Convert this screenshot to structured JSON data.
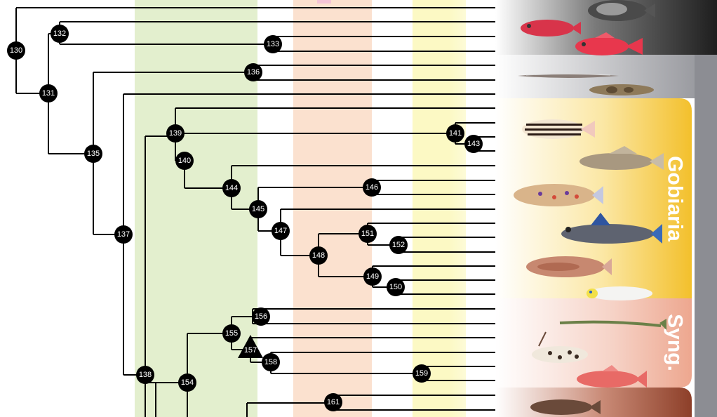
{
  "tree": {
    "nodes": [
      {
        "id": "130",
        "label": "130"
      },
      {
        "id": "131",
        "label": "131"
      },
      {
        "id": "132",
        "label": "132"
      },
      {
        "id": "133",
        "label": "133"
      },
      {
        "id": "135",
        "label": "135"
      },
      {
        "id": "136",
        "label": "136"
      },
      {
        "id": "137",
        "label": "137"
      },
      {
        "id": "138",
        "label": "138"
      },
      {
        "id": "139",
        "label": "139"
      },
      {
        "id": "140",
        "label": "140"
      },
      {
        "id": "141",
        "label": "141"
      },
      {
        "id": "143",
        "label": "143"
      },
      {
        "id": "144",
        "label": "144"
      },
      {
        "id": "145",
        "label": "145"
      },
      {
        "id": "146",
        "label": "146"
      },
      {
        "id": "147",
        "label": "147"
      },
      {
        "id": "148",
        "label": "148"
      },
      {
        "id": "149",
        "label": "149"
      },
      {
        "id": "150",
        "label": "150"
      },
      {
        "id": "151",
        "label": "151"
      },
      {
        "id": "152",
        "label": "152"
      },
      {
        "id": "154",
        "label": "154"
      },
      {
        "id": "155",
        "label": "155"
      },
      {
        "id": "156",
        "label": "156"
      },
      {
        "id": "157",
        "label": "157",
        "marker": "triangle"
      },
      {
        "id": "158",
        "label": "158"
      },
      {
        "id": "159",
        "label": "159"
      },
      {
        "id": "161",
        "label": "161"
      }
    ]
  },
  "groups": [
    {
      "id": "gobiaria",
      "label": "Gobiaria",
      "color": "#f5c83a"
    },
    {
      "id": "syngnatharia",
      "label": "Syng.",
      "color": "#eeab95"
    }
  ],
  "colors": {
    "band_green": "#e3efce",
    "band_salmon": "#fbe1cf",
    "band_yellow": "#fcf9c4",
    "branch": "#000000",
    "node": "#000000",
    "panel_dark": "#2a2a2a",
    "panel_grey": "#8c8d93",
    "panel_brown": "#9a4a32"
  },
  "icons": [
    "fish-red-squirrelfish-icon",
    "fish-dark-deepsea-icon",
    "fish-red-soldierfish-icon",
    "fish-eel-icon",
    "fish-mottled-icon",
    "fish-striped-cardinalfish-icon",
    "fish-goby-brown-icon",
    "fish-goby-spotted-icon",
    "fish-mudskipper-icon",
    "fish-goby-red-icon",
    "fish-white-goby-icon",
    "fish-pipefish-icon",
    "fish-dragonet-icon",
    "fish-red-goatfish-icon",
    "fish-brown-icon"
  ]
}
